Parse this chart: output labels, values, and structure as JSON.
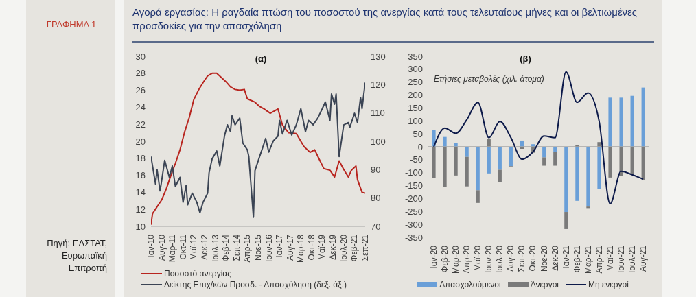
{
  "chart_data": [
    {
      "type": "other",
      "title": "Αγορά εργασίας: Η ραγδαία πτώση του ποσοστού της ανεργίας κατά τους τελευταίους μήνες και οι βελτιωμένες προσδοκίες για την απασχόληση",
      "annotations": [
        "ΓΡΑΦΗΜΑ 1",
        "Πηγή: ΕΛΣΤΑΤ, Ευρωπαϊκή Επιτροπή"
      ]
    },
    {
      "type": "line",
      "title": "(α)",
      "legend": "bottom left",
      "xlim": [
        "2010-01",
        "2021-09"
      ],
      "xticks": [
        {
          "value": "2010-01",
          "label": "Ιαν-10"
        },
        {
          "value": "2010-08",
          "label": "Αυγ-10"
        },
        {
          "value": "2011-03",
          "label": "Μαρ-11"
        },
        {
          "value": "2011-10",
          "label": "Οκτ-11"
        },
        {
          "value": "2012-05",
          "label": "Μαϊ-12"
        },
        {
          "value": "2012-12",
          "label": "Δεκ-12"
        },
        {
          "value": "2013-07",
          "label": "Ιουλ-13"
        },
        {
          "value": "2014-02",
          "label": "Φεβ-14"
        },
        {
          "value": "2014-09",
          "label": "Σεπ-14"
        },
        {
          "value": "2015-04",
          "label": "Απρ-15"
        },
        {
          "value": "2015-11",
          "label": "Νοε-15"
        },
        {
          "value": "2016-06",
          "label": "Ιουν-16"
        },
        {
          "value": "2017-01",
          "label": "Ιαν-17"
        },
        {
          "value": "2017-08",
          "label": "Αυγ-17"
        },
        {
          "value": "2018-03",
          "label": "Μαρ-18"
        },
        {
          "value": "2018-10",
          "label": "Οκτ-18"
        },
        {
          "value": "2019-05",
          "label": "Μαϊ-19"
        },
        {
          "value": "2019-12",
          "label": "Δεκ-19"
        },
        {
          "value": "2020-07",
          "label": "Ιουλ-20"
        },
        {
          "value": "2021-02",
          "label": "Φεβ-21"
        },
        {
          "value": "2021-09",
          "label": "Σεπ-21"
        }
      ],
      "ylim": [
        10,
        30
      ],
      "yticks": [
        10,
        12,
        14,
        16,
        18,
        20,
        22,
        24,
        26,
        28,
        30
      ],
      "y2lim": [
        70,
        130
      ],
      "y2ticks": [
        70,
        80,
        90,
        100,
        110,
        120,
        130
      ],
      "series": [
        {
          "name": "Ποσοστό ανεργίας",
          "color": "#b8251f",
          "x": [
            "2010-01",
            "2010-02",
            "2010-05",
            "2010-08",
            "2010-11",
            "2011-02",
            "2011-05",
            "2011-08",
            "2011-11",
            "2012-02",
            "2012-05",
            "2012-08",
            "2012-11",
            "2013-02",
            "2013-05",
            "2013-08",
            "2013-11",
            "2014-02",
            "2014-05",
            "2014-08",
            "2014-11",
            "2015-02",
            "2015-04",
            "2015-09",
            "2015-12",
            "2016-03",
            "2016-07",
            "2016-12",
            "2017-03",
            "2017-07",
            "2017-12",
            "2018-05",
            "2018-09",
            "2018-12",
            "2019-03",
            "2019-06",
            "2019-10",
            "2020-01",
            "2020-04",
            "2020-07",
            "2020-10",
            "2020-12",
            "2021-03",
            "2021-04",
            "2021-07",
            "2021-09"
          ],
          "values": [
            10.2,
            11.5,
            12.3,
            13.1,
            14.4,
            16.0,
            17.4,
            19.0,
            21.1,
            22.8,
            24.9,
            26.0,
            26.9,
            27.7,
            28.0,
            28.0,
            27.5,
            27.0,
            26.4,
            26.1,
            26.0,
            26.1,
            25.0,
            24.6,
            24.1,
            23.8,
            23.3,
            23.8,
            21.9,
            21.0,
            20.9,
            19.4,
            18.7,
            19.0,
            17.9,
            16.8,
            16.6,
            15.8,
            17.7,
            16.7,
            15.8,
            16.6,
            17.1,
            15.5,
            14.0,
            13.9
          ]
        },
        {
          "name": "Δείκτης Επιχ/κών Προσδ. - Απασχόληση (δεξ. άξ.)",
          "color": "#3b4454",
          "axis": "y2",
          "x": [
            "2010-01",
            "2010-02",
            "2010-04",
            "2010-05",
            "2010-07",
            "2010-10",
            "2010-11",
            "2011-01",
            "2011-03",
            "2011-05",
            "2011-08",
            "2011-10",
            "2011-12",
            "2012-01",
            "2012-04",
            "2012-07",
            "2012-09",
            "2012-11",
            "2013-02",
            "2013-03",
            "2013-05",
            "2013-08",
            "2013-10",
            "2014-01",
            "2014-03",
            "2014-05",
            "2014-06",
            "2014-08",
            "2014-11",
            "2015-01",
            "2015-04",
            "2015-05",
            "2015-08",
            "2015-09",
            "2015-12",
            "2016-02",
            "2016-04",
            "2016-06",
            "2016-09",
            "2016-12",
            "2017-01",
            "2017-03",
            "2017-06",
            "2017-09",
            "2017-12",
            "2018-03",
            "2018-06",
            "2018-08",
            "2018-11",
            "2019-02",
            "2019-05",
            "2019-07",
            "2019-10",
            "2019-11",
            "2020-01",
            "2020-02",
            "2020-04",
            "2020-07",
            "2020-10",
            "2020-11",
            "2021-02",
            "2021-04",
            "2021-06",
            "2021-07",
            "2021-09"
          ],
          "values": [
            94.6,
            91.3,
            84.9,
            90.1,
            82.5,
            93.3,
            91.3,
            87.3,
            91.3,
            84.1,
            87.3,
            78.5,
            84.5,
            77.6,
            81.7,
            78.5,
            74.8,
            78.5,
            81.7,
            88.9,
            93.8,
            96.6,
            91.3,
            101.8,
            105.8,
            103.4,
            109.0,
            105.8,
            108.2,
            99.4,
            97.0,
            94.6,
            73.2,
            89.7,
            94.6,
            97.8,
            101.0,
            96.2,
            100.2,
            101.8,
            107.4,
            102.6,
            107.4,
            102.2,
            105.8,
            111.5,
            103.4,
            107.4,
            105.8,
            108.2,
            111.5,
            113.9,
            107.4,
            116.7,
            113.1,
            116.7,
            94.6,
            105.8,
            106.6,
            105.0,
            109.9,
            106.6,
            115.5,
            111.5,
            120.7
          ]
        }
      ]
    },
    {
      "type": "bar",
      "title": "(β)",
      "annotations": [
        "Ετήσιες μεταβολές (χιλ. άτομα)"
      ],
      "stacked": true,
      "legend": "bottom",
      "categories": [
        "Ιαν-20",
        "Φεβ-20",
        "Μαρ-20",
        "Απρ-20",
        "Μαϊ-20",
        "Ιουν-20",
        "Ιουλ-20",
        "Αυγ-20",
        "Σεπ-20",
        "Οκτ-20",
        "Νοε-20",
        "Δεκ-20",
        "Ιαν-21",
        "Φεβ-21",
        "Μαρ-21",
        "Απρ-21",
        "Μαϊ-21",
        "Ιουν-21",
        "Ιουλ-21",
        "Αυγ-21"
      ],
      "ylim": [
        -350,
        350
      ],
      "yticks": [
        -350,
        -300,
        -250,
        -200,
        -150,
        -100,
        -50,
        0,
        50,
        100,
        150,
        200,
        250,
        300,
        350
      ],
      "ref_lines": [
        {
          "axis": "y",
          "value": 0,
          "color": "#a6a6a6"
        }
      ],
      "series": [
        {
          "name": "Απασχολούμενοι",
          "type": "bar",
          "color": "#6a9fd8",
          "values": [
            64,
            38,
            15,
            -39,
            -168,
            -103,
            -89,
            -75,
            24,
            10,
            -41,
            -21,
            -252,
            -209,
            -231,
            -164,
            190,
            190,
            197,
            229
          ]
        },
        {
          "name": "Άνεργοι",
          "type": "bar",
          "color": "#7a7a7a",
          "values": [
            -121,
            -156,
            -111,
            -114,
            -49,
            31,
            -47,
            -3,
            -8,
            -23,
            -32,
            -52,
            -66,
            8,
            -6,
            18,
            -119,
            -114,
            -109,
            -128
          ]
        },
        {
          "name": "Μη ενεργοί",
          "type": "line",
          "color": "#0d1a4a",
          "values": [
            0,
            72,
            52,
            105,
            172,
            35,
            98,
            35,
            -48,
            -20,
            42,
            35,
            290,
            172,
            208,
            100,
            -220,
            -95,
            -108,
            -125
          ]
        }
      ]
    }
  ]
}
